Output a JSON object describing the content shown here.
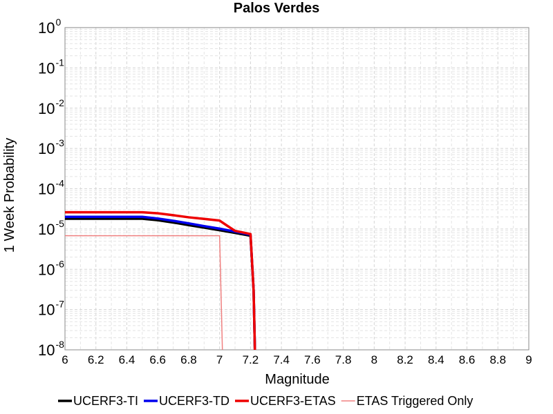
{
  "chart_data": {
    "type": "line",
    "title": "Palos Verdes",
    "xlabel": "Magnitude",
    "ylabel": "1 Week Probability",
    "xlim": [
      6,
      9
    ],
    "ylim": [
      1e-08,
      1
    ],
    "yscale": "log",
    "grid": true,
    "legend_position": "bottom",
    "x_ticks": [
      "6",
      "6.2",
      "6.4",
      "6.6",
      "6.8",
      "7",
      "7.2",
      "7.4",
      "7.6",
      "7.8",
      "8",
      "8.2",
      "8.4",
      "8.6",
      "8.8",
      "9"
    ],
    "y_ticks": [
      {
        "base": "10",
        "exp": "0"
      },
      {
        "base": "10",
        "exp": "-1"
      },
      {
        "base": "10",
        "exp": "-2"
      },
      {
        "base": "10",
        "exp": "-3"
      },
      {
        "base": "10",
        "exp": "-4"
      },
      {
        "base": "10",
        "exp": "-5"
      },
      {
        "base": "10",
        "exp": "-6"
      },
      {
        "base": "10",
        "exp": "-7"
      },
      {
        "base": "10",
        "exp": "-8"
      }
    ],
    "series": [
      {
        "name": "UCERF3-TI",
        "color": "#000000",
        "width": 3.5,
        "x": [
          6.0,
          6.5,
          6.6,
          6.7,
          6.8,
          6.9,
          7.0,
          7.1,
          7.2,
          7.22,
          7.23
        ],
        "y": [
          1.8e-05,
          1.8e-05,
          1.65e-05,
          1.45e-05,
          1.25e-05,
          1.08e-05,
          9.3e-06,
          8e-06,
          6.8e-06,
          3e-07,
          5e-09
        ]
      },
      {
        "name": "UCERF3-TD",
        "color": "#0000ee",
        "width": 3.5,
        "x": [
          6.0,
          6.5,
          6.6,
          6.7,
          6.8,
          6.9,
          7.0,
          7.1,
          7.2,
          7.22,
          7.23
        ],
        "y": [
          2e-05,
          2e-05,
          1.82e-05,
          1.6e-05,
          1.38e-05,
          1.18e-05,
          1.02e-05,
          8.6e-06,
          7.2e-06,
          3e-07,
          5e-09
        ]
      },
      {
        "name": "UCERF3-ETAS",
        "color": "#ee0000",
        "width": 3.5,
        "x": [
          6.0,
          6.5,
          6.6,
          6.7,
          6.8,
          6.9,
          7.0,
          7.05,
          7.1,
          7.2,
          7.22,
          7.23
        ],
        "y": [
          2.6e-05,
          2.6e-05,
          2.45e-05,
          2.2e-05,
          1.95e-05,
          1.78e-05,
          1.62e-05,
          1.2e-05,
          9e-06,
          7.5e-06,
          3e-07,
          5e-09
        ]
      },
      {
        "name": "ETAS Triggered Only",
        "color": "#f08080",
        "width": 1.5,
        "x": [
          6.0,
          7.0,
          7.01,
          7.02
        ],
        "y": [
          6.8e-06,
          6.8e-06,
          2e-07,
          5e-09
        ]
      }
    ]
  }
}
